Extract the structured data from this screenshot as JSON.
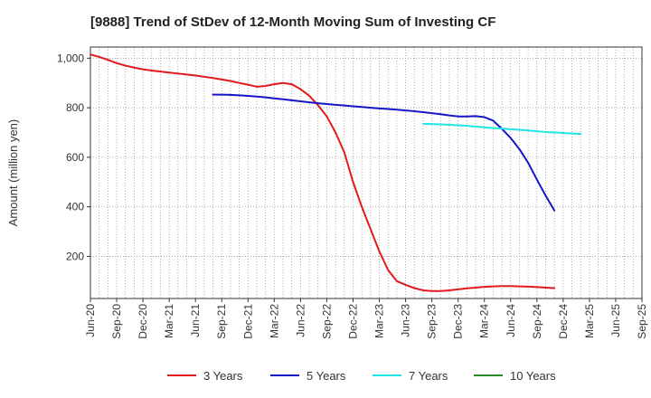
{
  "chart_data": {
    "type": "line",
    "title": "[9888]  Trend of StDev of 12-Month Moving Sum of Investing CF",
    "ylabel": "Amount (million yen)",
    "xlabel": "",
    "ylim": [
      30,
      1045
    ],
    "yticks": [
      200,
      400,
      600,
      800,
      1000
    ],
    "ytick_labels": [
      "200",
      "400",
      "600",
      "800",
      "1,000"
    ],
    "x_tick_labels": [
      "Jun-20",
      "Sep-20",
      "Dec-20",
      "Mar-21",
      "Jun-21",
      "Sep-21",
      "Dec-21",
      "Mar-22",
      "Jun-22",
      "Sep-22",
      "Dec-22",
      "Mar-23",
      "Jun-23",
      "Sep-23",
      "Dec-23",
      "Mar-24",
      "Jun-24",
      "Sep-24",
      "Dec-24",
      "Mar-25",
      "Jun-25",
      "Sep-25"
    ],
    "x_months": [
      "Jun-20",
      "Jul-20",
      "Aug-20",
      "Sep-20",
      "Oct-20",
      "Nov-20",
      "Dec-20",
      "Jan-21",
      "Feb-21",
      "Mar-21",
      "Apr-21",
      "May-21",
      "Jun-21",
      "Jul-21",
      "Aug-21",
      "Sep-21",
      "Oct-21",
      "Nov-21",
      "Dec-21",
      "Jan-22",
      "Feb-22",
      "Mar-22",
      "Apr-22",
      "May-22",
      "Jun-22",
      "Jul-22",
      "Aug-22",
      "Sep-22",
      "Oct-22",
      "Nov-22",
      "Dec-22",
      "Jan-23",
      "Feb-23",
      "Mar-23",
      "Apr-23",
      "May-23",
      "Jun-23",
      "Jul-23",
      "Aug-23",
      "Sep-23",
      "Oct-23",
      "Nov-23",
      "Dec-23",
      "Jan-24",
      "Feb-24",
      "Mar-24",
      "Apr-24",
      "May-24",
      "Jun-24",
      "Jul-24",
      "Aug-24",
      "Sep-24",
      "Oct-24",
      "Nov-24",
      "Dec-24",
      "Jan-25",
      "Feb-25",
      "Mar-25",
      "Apr-25",
      "May-25",
      "Jun-25",
      "Jul-25",
      "Aug-25",
      "Sep-25"
    ],
    "grid": true,
    "legend_position": "bottom",
    "series": [
      {
        "name": "3 Years",
        "color": "#e31a1c",
        "start_month": "Jun-20",
        "values": [
          1015,
          1005,
          993,
          980,
          970,
          962,
          955,
          950,
          946,
          942,
          938,
          934,
          930,
          925,
          920,
          914,
          908,
          900,
          893,
          885,
          888,
          895,
          900,
          895,
          875,
          848,
          810,
          765,
          700,
          620,
          500,
          400,
          310,
          220,
          145,
          100,
          85,
          72,
          63,
          60,
          60,
          63,
          67,
          71,
          74,
          77,
          79,
          80,
          80,
          79,
          78,
          76,
          74,
          72
        ]
      },
      {
        "name": "5 Years",
        "color": "#1515c8",
        "start_month": "Aug-21",
        "values": [
          853,
          853,
          852,
          850,
          848,
          845,
          842,
          838,
          834,
          830,
          826,
          822,
          818,
          815,
          812,
          809,
          806,
          803,
          800,
          797,
          795,
          792,
          789,
          786,
          782,
          778,
          774,
          769,
          765,
          765,
          766,
          762,
          748,
          715,
          678,
          633,
          578,
          510,
          445,
          385
        ]
      },
      {
        "name": "7 Years",
        "color": "#22e5e5",
        "start_month": "Aug-23",
        "values": [
          735,
          734,
          733,
          731,
          729,
          727,
          724,
          721,
          718,
          716,
          713,
          711,
          708,
          705,
          702,
          700,
          698,
          696,
          694
        ]
      },
      {
        "name": "10 Years",
        "color": "#2a8a2a",
        "start_month": "Mar-25",
        "values": []
      }
    ]
  }
}
